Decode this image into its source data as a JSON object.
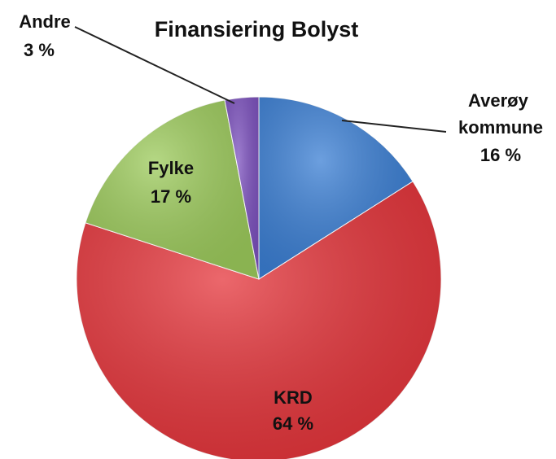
{
  "chart_data": {
    "type": "pie",
    "title": "Finansiering Bolyst",
    "categories": [
      "Averøy kommune",
      "KRD",
      "Fylke",
      "Andre"
    ],
    "values": [
      16,
      64,
      17,
      3
    ],
    "value_labels": [
      "16 %",
      "64 %",
      "17 %",
      "3 %"
    ],
    "colors": [
      "#3b7fd4",
      "#e5353b",
      "#9dcb5c",
      "#7d52bf"
    ]
  }
}
